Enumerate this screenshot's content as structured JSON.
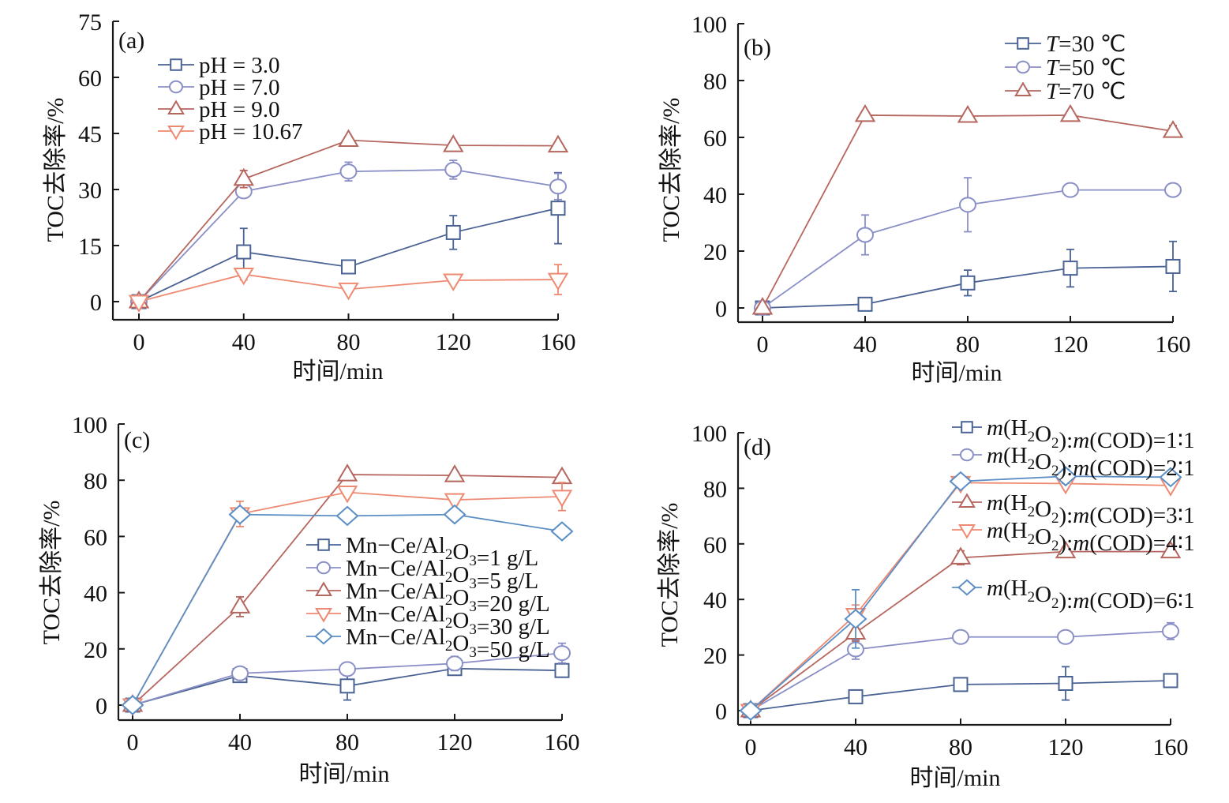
{
  "figure": {
    "colors": {
      "navy": "#4a6394",
      "lavender": "#8a8fc6",
      "brick": "#b5665e",
      "salmon": "#ef8a72",
      "steel": "#5b8ec4"
    }
  },
  "chart_data": [
    {
      "id": "a",
      "type": "line",
      "panel_label": "(a)",
      "title": "",
      "xlabel": "时间/min",
      "ylabel": "TOC去除率/%",
      "x": [
        0,
        40,
        80,
        120,
        160
      ],
      "xlim": [
        0,
        160
      ],
      "ylim": [
        0,
        75
      ],
      "xticks": [
        "0",
        "40",
        "80",
        "120",
        "160"
      ],
      "yticks": [
        "0",
        "15",
        "30",
        "45",
        "60",
        "75"
      ],
      "legend_position": "top-left",
      "grid": false,
      "series": [
        {
          "name": "pH = 3.0",
          "label_parts": [
            [
              "pH = 3.0",
              ""
            ]
          ],
          "marker": "square",
          "color": "#4a6394",
          "values": [
            0,
            13.3,
            9.3,
            18.5,
            25.0
          ],
          "errors": [
            0.8,
            6.3,
            1.2,
            4.5,
            9.5
          ]
        },
        {
          "name": "pH = 7.0",
          "label_parts": [
            [
              "pH = 7.0",
              ""
            ]
          ],
          "marker": "circle",
          "color": "#8a8fc6",
          "values": [
            0,
            29.5,
            34.8,
            35.3,
            30.8
          ],
          "errors": [
            0.5,
            0.8,
            2.5,
            2.5,
            3.5
          ]
        },
        {
          "name": "pH = 9.0",
          "label_parts": [
            [
              "pH = 9.0",
              ""
            ]
          ],
          "marker": "triangle-up",
          "color": "#b5665e",
          "values": [
            0,
            32.8,
            43.2,
            41.8,
            41.7
          ],
          "errors": [
            0.5,
            2.3,
            0.6,
            0.4,
            0.8
          ]
        },
        {
          "name": "pH = 10.67",
          "label_parts": [
            [
              "pH = 10.67",
              ""
            ]
          ],
          "marker": "triangle-down",
          "color": "#ef8a72",
          "values": [
            0,
            7.3,
            3.3,
            5.7,
            5.9
          ],
          "errors": [
            0.5,
            1.5,
            0.8,
            0.8,
            4.0
          ]
        }
      ]
    },
    {
      "id": "b",
      "type": "line",
      "panel_label": "(b)",
      "title": "",
      "xlabel": "时间/min",
      "ylabel": "TOC去除率/%",
      "x": [
        0,
        40,
        80,
        120,
        160
      ],
      "xlim": [
        0,
        160
      ],
      "ylim": [
        0,
        100
      ],
      "xticks": [
        "0",
        "40",
        "80",
        "120",
        "160"
      ],
      "yticks": [
        "0",
        "20",
        "40",
        "60",
        "80",
        "100"
      ],
      "legend_position": "top-right",
      "grid": false,
      "series": [
        {
          "name": "T=30 ℃",
          "label_parts": [
            [
              "T",
              "italic"
            ],
            [
              "=30 ℃",
              ""
            ]
          ],
          "marker": "square",
          "color": "#4a6394",
          "values": [
            0,
            1.3,
            8.8,
            14.0,
            14.6
          ],
          "errors": [
            0.5,
            1.3,
            4.5,
            6.6,
            8.8
          ]
        },
        {
          "name": "T=50 ℃",
          "label_parts": [
            [
              "T",
              "italic"
            ],
            [
              "=50 ℃",
              ""
            ]
          ],
          "marker": "circle",
          "color": "#8a8fc6",
          "values": [
            0,
            25.7,
            36.3,
            41.5,
            41.5
          ],
          "errors": [
            0.5,
            7.0,
            9.5,
            1.0,
            1.0
          ]
        },
        {
          "name": "T=70 ℃",
          "label_parts": [
            [
              "T",
              "italic"
            ],
            [
              "=70 ℃",
              ""
            ]
          ],
          "marker": "triangle-up",
          "color": "#b5665e",
          "values": [
            0,
            67.8,
            67.5,
            67.8,
            62.2
          ],
          "errors": [
            0.5,
            1.0,
            1.2,
            1.2,
            2.0
          ]
        }
      ]
    },
    {
      "id": "c",
      "type": "line",
      "panel_label": "(c)",
      "title": "",
      "xlabel": "时间/min",
      "ylabel": "TOC去除率/%",
      "x": [
        0,
        40,
        80,
        120,
        160
      ],
      "xlim": [
        0,
        160
      ],
      "ylim": [
        0,
        100
      ],
      "xticks": [
        "0",
        "40",
        "80",
        "120",
        "160"
      ],
      "yticks": [
        "0",
        "20",
        "40",
        "60",
        "80",
        "100"
      ],
      "legend_position": "center-right",
      "grid": false,
      "series": [
        {
          "name": "Mn-Ce/Al2O3=1 g/L",
          "label_parts": [
            [
              "Mn−Ce/Al",
              ""
            ],
            [
              "2",
              "sub"
            ],
            [
              "O",
              ""
            ],
            [
              "3",
              "sub"
            ],
            [
              "=1 g/L",
              ""
            ]
          ],
          "marker": "square",
          "color": "#4a6394",
          "values": [
            0,
            10.5,
            6.8,
            13.0,
            12.3
          ],
          "errors": [
            0.5,
            0.8,
            5.0,
            1.3,
            2.0
          ]
        },
        {
          "name": "Mn-Ce/Al2O3=5 g/L",
          "label_parts": [
            [
              "Mn−Ce/Al",
              ""
            ],
            [
              "2",
              "sub"
            ],
            [
              "O",
              ""
            ],
            [
              "3",
              "sub"
            ],
            [
              "=5 g/L",
              ""
            ]
          ],
          "marker": "circle",
          "color": "#8a8fc6",
          "values": [
            0,
            11.3,
            12.8,
            14.8,
            18.5
          ],
          "errors": [
            0.5,
            1.0,
            1.5,
            2.5,
            3.5
          ]
        },
        {
          "name": "Mn-Ce/Al2O3=20 g/L",
          "label_parts": [
            [
              "Mn−Ce/Al",
              ""
            ],
            [
              "2",
              "sub"
            ],
            [
              "O",
              ""
            ],
            [
              "3",
              "sub"
            ],
            [
              "=20 g/L",
              ""
            ]
          ],
          "marker": "triangle-up",
          "color": "#b5665e",
          "values": [
            0,
            35.0,
            82.0,
            81.7,
            81.0
          ],
          "errors": [
            0.5,
            3.5,
            0.5,
            1.0,
            0.5
          ]
        },
        {
          "name": "Mn-Ce/Al2O3=30 g/L",
          "label_parts": [
            [
              "Mn−Ce/Al",
              ""
            ],
            [
              "2",
              "sub"
            ],
            [
              "O",
              ""
            ],
            [
              "3",
              "sub"
            ],
            [
              "=30 g/L",
              ""
            ]
          ],
          "marker": "triangle-down",
          "color": "#ef8a72",
          "values": [
            0,
            68.0,
            75.7,
            73.0,
            74.2
          ],
          "errors": [
            0.5,
            4.5,
            1.5,
            1.5,
            5.0
          ]
        },
        {
          "name": "Mn-Ce/Al2O3=50 g/L",
          "label_parts": [
            [
              "Mn−Ce/Al",
              ""
            ],
            [
              "2",
              "sub"
            ],
            [
              "O",
              ""
            ],
            [
              "3",
              "sub"
            ],
            [
              "=50 g/L",
              ""
            ]
          ],
          "marker": "diamond",
          "color": "#5b8ec4",
          "values": [
            0,
            67.8,
            67.3,
            67.8,
            61.8
          ],
          "errors": [
            0.5,
            1.5,
            1.5,
            1.8,
            1.5
          ]
        }
      ]
    },
    {
      "id": "d",
      "type": "line",
      "panel_label": "(d)",
      "title": "",
      "xlabel": "时间/min",
      "ylabel": "TOC去除率/%",
      "x": [
        0,
        40,
        80,
        120,
        160
      ],
      "xlim": [
        0,
        160
      ],
      "ylim": [
        0,
        100
      ],
      "xticks": [
        "0",
        "40",
        "80",
        "120",
        "160"
      ],
      "yticks": [
        "0",
        "20",
        "40",
        "60",
        "80",
        "100"
      ],
      "legend_position": "top-right",
      "grid": false,
      "series": [
        {
          "name": "m(H2O2):m(COD)=1:1",
          "label_parts": [
            [
              "m",
              "italic"
            ],
            [
              "(H",
              ""
            ],
            [
              "2",
              "sub"
            ],
            [
              "O",
              ""
            ],
            [
              "2",
              "sub"
            ],
            [
              "):",
              ""
            ],
            [
              "m",
              "italic"
            ],
            [
              "(COD)=1∶1",
              ""
            ]
          ],
          "marker": "square",
          "color": "#4a6394",
          "values": [
            0,
            5.0,
            9.4,
            9.8,
            10.8
          ],
          "errors": [
            0.5,
            0.8,
            0.8,
            6.0,
            1.0
          ]
        },
        {
          "name": "m(H2O2):m(COD)=2:1",
          "label_parts": [
            [
              "m",
              "italic"
            ],
            [
              "(H",
              ""
            ],
            [
              "2",
              "sub"
            ],
            [
              "O",
              ""
            ],
            [
              "2",
              "sub"
            ],
            [
              "):",
              ""
            ],
            [
              "m",
              "italic"
            ],
            [
              "(COD)=2∶1",
              ""
            ]
          ],
          "marker": "circle",
          "color": "#8a8fc6",
          "values": [
            0,
            22.0,
            26.5,
            26.5,
            28.6
          ],
          "errors": [
            0.5,
            3.5,
            1.0,
            0.5,
            3.0
          ]
        },
        {
          "name": "m(H2O2):m(COD)=3:1",
          "label_parts": [
            [
              "m",
              "italic"
            ],
            [
              "(H",
              ""
            ],
            [
              "2",
              "sub"
            ],
            [
              "O",
              ""
            ],
            [
              "2",
              "sub"
            ],
            [
              "):",
              ""
            ],
            [
              "m",
              "italic"
            ],
            [
              "(COD)=3∶1",
              ""
            ]
          ],
          "marker": "triangle-up",
          "color": "#b5665e",
          "values": [
            0,
            28.0,
            55.0,
            57.2,
            57.2
          ],
          "errors": [
            0.5,
            3.0,
            2.5,
            1.5,
            0.8
          ]
        },
        {
          "name": "m(H2O2):m(COD)=4:1",
          "label_parts": [
            [
              "m",
              "italic"
            ],
            [
              "(H",
              ""
            ],
            [
              "2",
              "sub"
            ],
            [
              "O",
              ""
            ],
            [
              "2",
              "sub"
            ],
            [
              "):",
              ""
            ],
            [
              "m",
              "italic"
            ],
            [
              "(COD)=4∶1",
              ""
            ]
          ],
          "marker": "triangle-down",
          "color": "#ef8a72",
          "values": [
            0,
            34.5,
            82.0,
            81.7,
            81.0
          ],
          "errors": [
            0.5,
            3.5,
            1.5,
            1.5,
            1.5
          ]
        },
        {
          "name": "m(H2O2):m(COD)=6:1",
          "label_parts": [
            [
              "m",
              "italic"
            ],
            [
              "(H",
              ""
            ],
            [
              "2",
              "sub"
            ],
            [
              "O",
              ""
            ],
            [
              "2",
              "sub"
            ],
            [
              "):",
              ""
            ],
            [
              "m",
              "italic"
            ],
            [
              "(COD)=6∶1",
              ""
            ]
          ],
          "marker": "diamond",
          "color": "#5b8ec4",
          "values": [
            0,
            33.0,
            82.5,
            84.3,
            84.0
          ],
          "errors": [
            0.5,
            10.5,
            1.5,
            2.5,
            2.0
          ]
        }
      ]
    }
  ]
}
